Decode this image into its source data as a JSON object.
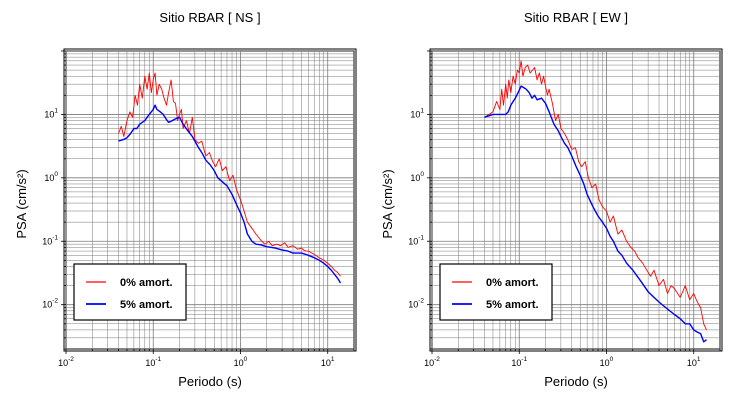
{
  "chart_data": [
    {
      "type": "line",
      "title": "Sitio RBAR [ NS ]",
      "xlabel": "Periodo (s)",
      "ylabel": "PSA (cm/s²)",
      "xscale": "log",
      "yscale": "log",
      "xlim": [
        0.01,
        20
      ],
      "ylim": [
        0.002,
        100
      ],
      "grid": true,
      "legend_position": "bottom-left",
      "x_ticks": [
        {
          "value": 0.01,
          "base": "10",
          "exp": "-2"
        },
        {
          "value": 0.1,
          "base": "10",
          "exp": "-1"
        },
        {
          "value": 1,
          "base": "10",
          "exp": "0"
        },
        {
          "value": 10,
          "base": "10",
          "exp": "1"
        }
      ],
      "y_ticks": [
        {
          "value": 0.01,
          "base": "10",
          "exp": "-2"
        },
        {
          "value": 0.1,
          "base": "10",
          "exp": "-1"
        },
        {
          "value": 1,
          "base": "10",
          "exp": "0"
        },
        {
          "value": 10,
          "base": "10",
          "exp": "1"
        }
      ],
      "series": [
        {
          "name": "0% amort.",
          "color": "#ff0000",
          "x": [
            0.04,
            0.043,
            0.046,
            0.05,
            0.054,
            0.058,
            0.062,
            0.066,
            0.07,
            0.075,
            0.08,
            0.085,
            0.09,
            0.095,
            0.1,
            0.105,
            0.11,
            0.117,
            0.125,
            0.133,
            0.142,
            0.15,
            0.16,
            0.17,
            0.18,
            0.19,
            0.2,
            0.21,
            0.22,
            0.24,
            0.26,
            0.28,
            0.3,
            0.33,
            0.36,
            0.4,
            0.44,
            0.48,
            0.52,
            0.57,
            0.62,
            0.68,
            0.75,
            0.82,
            0.9,
            1.0,
            1.1,
            1.2,
            1.35,
            1.5,
            1.7,
            1.9,
            2.1,
            2.3,
            2.6,
            2.9,
            3.2,
            3.5,
            4.0,
            4.5,
            5.0,
            5.5,
            6.0,
            7.0,
            8.0,
            9.0,
            10,
            11,
            12,
            13,
            14
          ],
          "y": [
            5,
            6.5,
            4.5,
            8,
            11,
            9,
            20,
            14,
            30,
            18,
            40,
            25,
            45,
            22,
            35,
            45,
            20,
            30,
            25,
            18,
            14,
            22,
            35,
            16,
            15,
            8,
            10,
            12,
            6,
            8,
            5,
            9,
            4,
            3.5,
            3.8,
            2.2,
            2.5,
            1.8,
            1.5,
            2.0,
            1.3,
            1.5,
            0.9,
            1.1,
            0.65,
            0.45,
            0.3,
            0.2,
            0.16,
            0.13,
            0.105,
            0.09,
            0.1,
            0.085,
            0.09,
            0.085,
            0.095,
            0.08,
            0.085,
            0.075,
            0.078,
            0.07,
            0.07,
            0.062,
            0.055,
            0.05,
            0.045,
            0.04,
            0.035,
            0.032,
            0.028
          ]
        },
        {
          "name": "5% amort.",
          "color": "#0000ff",
          "x": [
            0.04,
            0.045,
            0.05,
            0.055,
            0.06,
            0.065,
            0.07,
            0.075,
            0.08,
            0.085,
            0.09,
            0.1,
            0.105,
            0.11,
            0.12,
            0.13,
            0.14,
            0.15,
            0.16,
            0.18,
            0.2,
            0.22,
            0.25,
            0.28,
            0.3,
            0.33,
            0.36,
            0.4,
            0.45,
            0.5,
            0.55,
            0.6,
            0.7,
            0.8,
            0.9,
            1.0,
            1.1,
            1.2,
            1.35,
            1.5,
            1.7,
            2.0,
            2.5,
            3.0,
            3.5,
            4.0,
            5.0,
            6.0,
            7.0,
            8.0,
            9.0,
            10,
            11,
            12,
            13,
            14
          ],
          "y": [
            3.8,
            4,
            4.3,
            5,
            6,
            6,
            7,
            7.5,
            8,
            9,
            10,
            12,
            14,
            12,
            11,
            10,
            8.5,
            7.5,
            7.8,
            8.5,
            9,
            7,
            5.5,
            4.5,
            3.8,
            3,
            2.5,
            1.9,
            1.6,
            1.3,
            1.0,
            0.9,
            0.75,
            0.55,
            0.38,
            0.28,
            0.2,
            0.13,
            0.1,
            0.09,
            0.088,
            0.082,
            0.078,
            0.073,
            0.07,
            0.065,
            0.065,
            0.06,
            0.055,
            0.05,
            0.045,
            0.04,
            0.035,
            0.03,
            0.026,
            0.022
          ]
        }
      ]
    },
    {
      "type": "line",
      "title": "Sitio RBAR [ EW ]",
      "xlabel": "Periodo (s)",
      "ylabel": "PSA (cm/s²)",
      "xscale": "log",
      "yscale": "log",
      "xlim": [
        0.01,
        20
      ],
      "ylim": [
        0.002,
        100
      ],
      "grid": true,
      "legend_position": "bottom-left",
      "x_ticks": [
        {
          "value": 0.01,
          "base": "10",
          "exp": "-2"
        },
        {
          "value": 0.1,
          "base": "10",
          "exp": "-1"
        },
        {
          "value": 1,
          "base": "10",
          "exp": "0"
        },
        {
          "value": 10,
          "base": "10",
          "exp": "1"
        }
      ],
      "y_ticks": [
        {
          "value": 0.01,
          "base": "10",
          "exp": "-2"
        },
        {
          "value": 0.1,
          "base": "10",
          "exp": "-1"
        },
        {
          "value": 1,
          "base": "10",
          "exp": "0"
        },
        {
          "value": 10,
          "base": "10",
          "exp": "1"
        }
      ],
      "series": [
        {
          "name": "0% amort.",
          "color": "#ff0000",
          "x": [
            0.04,
            0.045,
            0.05,
            0.055,
            0.06,
            0.063,
            0.066,
            0.07,
            0.073,
            0.076,
            0.08,
            0.085,
            0.09,
            0.095,
            0.1,
            0.105,
            0.11,
            0.117,
            0.125,
            0.133,
            0.142,
            0.15,
            0.16,
            0.17,
            0.18,
            0.19,
            0.2,
            0.21,
            0.22,
            0.24,
            0.26,
            0.28,
            0.3,
            0.33,
            0.36,
            0.4,
            0.44,
            0.48,
            0.52,
            0.57,
            0.62,
            0.68,
            0.75,
            0.82,
            0.9,
            1.0,
            1.1,
            1.2,
            1.35,
            1.5,
            1.7,
            1.9,
            2.1,
            2.3,
            2.6,
            2.9,
            3.2,
            3.5,
            4.0,
            4.5,
            5.0,
            5.5,
            6.0,
            7.0,
            8.0,
            9.0,
            10,
            11,
            12,
            13,
            14
          ],
          "y": [
            9,
            10,
            11,
            16,
            12,
            25,
            14,
            30,
            18,
            35,
            22,
            40,
            30,
            50,
            45,
            70,
            40,
            55,
            60,
            45,
            50,
            55,
            35,
            45,
            30,
            40,
            28,
            20,
            25,
            15,
            8,
            10,
            6,
            5,
            4,
            2.8,
            3,
            1.8,
            1.5,
            1.8,
            1.0,
            0.7,
            0.8,
            0.45,
            0.35,
            0.3,
            0.2,
            0.25,
            0.13,
            0.15,
            0.1,
            0.08,
            0.07,
            0.055,
            0.045,
            0.035,
            0.028,
            0.035,
            0.02,
            0.025,
            0.015,
            0.02,
            0.018,
            0.013,
            0.02,
            0.012,
            0.015,
            0.011,
            0.009,
            0.005,
            0.004
          ]
        },
        {
          "name": "5% amort.",
          "color": "#0000ff",
          "x": [
            0.04,
            0.045,
            0.05,
            0.055,
            0.06,
            0.065,
            0.07,
            0.075,
            0.08,
            0.085,
            0.09,
            0.1,
            0.105,
            0.11,
            0.12,
            0.13,
            0.14,
            0.15,
            0.16,
            0.18,
            0.2,
            0.22,
            0.25,
            0.28,
            0.3,
            0.33,
            0.36,
            0.4,
            0.45,
            0.5,
            0.55,
            0.6,
            0.7,
            0.8,
            0.9,
            1.0,
            1.1,
            1.2,
            1.35,
            1.5,
            1.7,
            2.0,
            2.5,
            3.0,
            3.5,
            4.0,
            5.0,
            6.0,
            7.0,
            8.0,
            9.0,
            10,
            11,
            12,
            13,
            14
          ],
          "y": [
            9,
            9.5,
            10,
            10,
            10,
            10,
            10,
            11,
            14,
            16,
            18,
            24,
            28,
            27,
            25,
            22,
            18,
            20,
            17,
            18,
            15,
            11,
            7,
            5.5,
            4.5,
            3.5,
            3,
            2.2,
            1.5,
            1.1,
            0.8,
            0.55,
            0.35,
            0.25,
            0.2,
            0.16,
            0.12,
            0.1,
            0.07,
            0.06,
            0.045,
            0.035,
            0.023,
            0.016,
            0.013,
            0.011,
            0.0085,
            0.007,
            0.006,
            0.005,
            0.005,
            0.004,
            0.0037,
            0.0035,
            0.0026,
            0.0028
          ]
        }
      ]
    }
  ]
}
